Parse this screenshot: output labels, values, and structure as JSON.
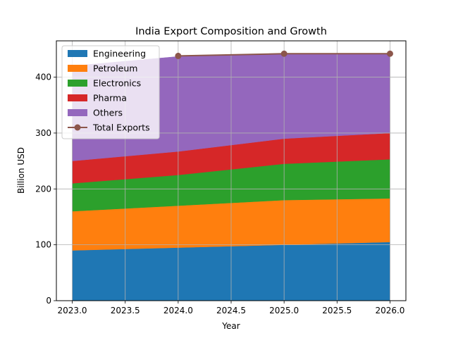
{
  "chart_data": {
    "type": "area",
    "title": "India Export Composition and Growth",
    "xlabel": "Year",
    "ylabel": "Billion USD",
    "x": [
      2023,
      2024,
      2025,
      2026
    ],
    "xlim": [
      2022.85,
      2026.15
    ],
    "ylim": [
      0,
      465
    ],
    "xticks": [
      2023.0,
      2023.5,
      2024.0,
      2024.5,
      2025.0,
      2025.5,
      2026.0
    ],
    "xtick_labels": [
      "2023.0",
      "2023.5",
      "2024.0",
      "2024.5",
      "2025.0",
      "2025.5",
      "2026.0"
    ],
    "yticks": [
      0,
      100,
      200,
      300,
      400
    ],
    "ytick_labels": [
      "0",
      "100",
      "200",
      "300",
      "400"
    ],
    "grid": true,
    "legend_position": "top-left",
    "series": [
      {
        "name": "Engineering",
        "values": [
          90,
          95,
          100,
          105
        ],
        "color": "#1f77b4"
      },
      {
        "name": "Petroleum",
        "values": [
          70,
          75,
          80,
          78
        ],
        "color": "#ff7f0e"
      },
      {
        "name": "Electronics",
        "values": [
          50,
          55,
          65,
          70
        ],
        "color": "#2ca02c"
      },
      {
        "name": "Pharma",
        "values": [
          40,
          42,
          45,
          47
        ],
        "color": "#d62728"
      },
      {
        "name": "Others",
        "values": [
          170,
          170,
          152,
          142
        ],
        "color": "#9467bd"
      }
    ],
    "line_series": {
      "name": "Total Exports",
      "x": [
        2024,
        2025,
        2026
      ],
      "values": [
        438,
        442,
        442
      ],
      "color": "#8c564b"
    }
  }
}
